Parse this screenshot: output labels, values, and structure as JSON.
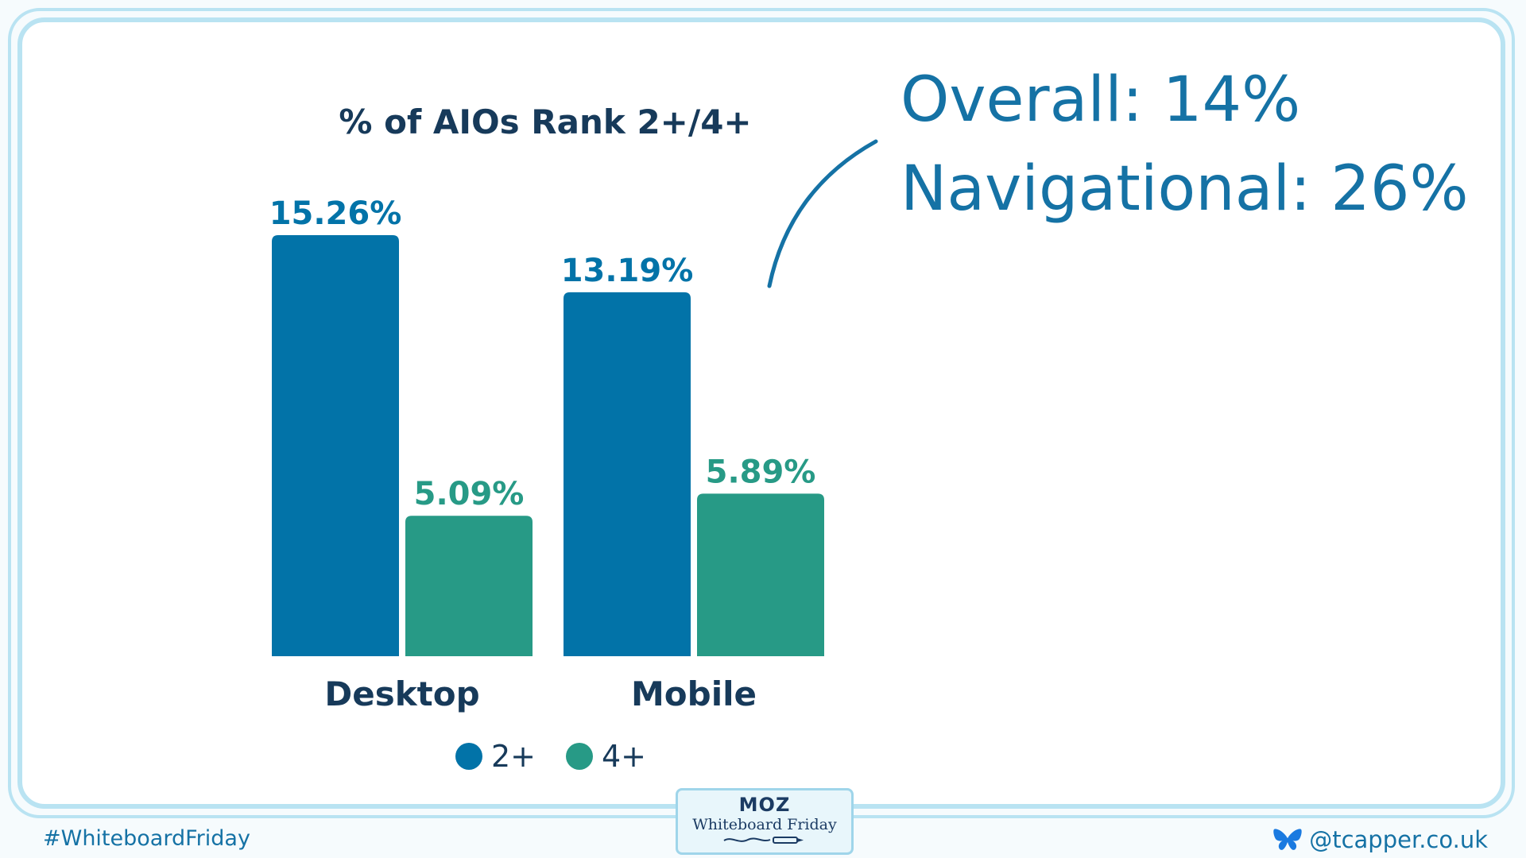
{
  "chart_data": {
    "type": "bar",
    "title": "% of AIOs Rank 2+/4+",
    "categories": [
      "Desktop",
      "Mobile"
    ],
    "series": [
      {
        "name": "2+",
        "values": [
          15.26,
          13.19
        ],
        "labels": [
          "15.26%",
          "13.19%"
        ],
        "color": "#0273a8"
      },
      {
        "name": "4+",
        "values": [
          5.09,
          5.89
        ],
        "labels": [
          "5.09%",
          "5.89%"
        ],
        "color": "#279a86"
      }
    ],
    "ylim": [
      0,
      15.26
    ],
    "grid": false,
    "legend": "bottom"
  },
  "annotation": {
    "line1": "Overall: 14%",
    "line2": "Navigational: 26%",
    "color": "#1572a5"
  },
  "footer": {
    "hashtag": "#WhiteboardFriday",
    "handle": "@tcapper.co.uk",
    "handle_icon": "butterfly-icon"
  },
  "badge": {
    "brand": "MOZ",
    "show": "Whiteboard Friday"
  }
}
